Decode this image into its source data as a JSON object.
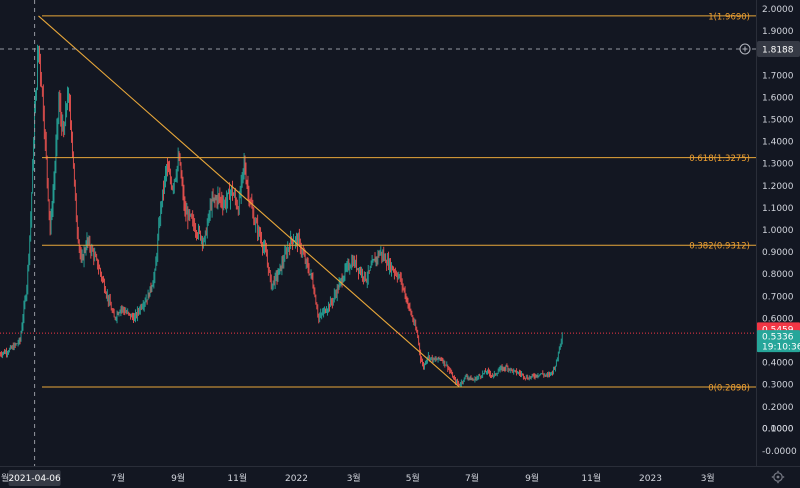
{
  "chart_data": {
    "type": "candlestick",
    "y_axis": {
      "range": [
        -0.05,
        2.0
      ],
      "ticks": [
        "2.0000",
        "1.9000",
        "1.8000",
        "1.7000",
        "1.6000",
        "1.5000",
        "1.4000",
        "1.3000",
        "1.2000",
        "1.1000",
        "1.0000",
        "0.9000",
        "0.8000",
        "0.7000",
        "0.6000",
        "0.5000",
        "0.4000",
        "0.3000",
        "0.2000",
        "0.1000",
        "0.0000",
        "-0.0000"
      ]
    },
    "x_axis": {
      "ticks": [
        {
          "label": "월",
          "date": "2021-03-01"
        },
        {
          "label": "7월",
          "date": "2021-07-01"
        },
        {
          "label": "9월",
          "date": "2021-09-01"
        },
        {
          "label": "11월",
          "date": "2021-11-01"
        },
        {
          "label": "2022",
          "date": "2022-01-01"
        },
        {
          "label": "3월",
          "date": "2022-03-01"
        },
        {
          "label": "5월",
          "date": "2022-05-01"
        },
        {
          "label": "7월",
          "date": "2022-07-01"
        },
        {
          "label": "9월",
          "date": "2022-09-01"
        },
        {
          "label": "11월",
          "date": "2022-11-01"
        },
        {
          "label": "2023",
          "date": "2023-01-01"
        },
        {
          "label": "3월",
          "date": "2023-03-01"
        }
      ]
    },
    "crosshair": {
      "date_label": "2021-04-06",
      "date": "2021-04-06",
      "price_label": "1.8188",
      "price": 1.8188
    },
    "fibonacci": [
      {
        "label": "1(1.9690)",
        "value": 1.969
      },
      {
        "label": "0.618(1.3275)",
        "value": 1.3275
      },
      {
        "label": "0.382(0.9312)",
        "value": 0.9312
      },
      {
        "label": "0(0.2898)",
        "value": 0.2898
      }
    ],
    "trendline": [
      {
        "date": "2021-04-10",
        "price": 1.969
      },
      {
        "date": "2022-06-18",
        "price": 0.2898
      }
    ],
    "price_tags": [
      {
        "label": "0.5459",
        "value": 0.5459,
        "color": "#f23645"
      },
      {
        "label": "0.5336",
        "value": 0.5336,
        "color": "#26a69a"
      }
    ],
    "countdown": "19:10:36",
    "price_path": [
      [
        "2021-03-01",
        0.44
      ],
      [
        "2021-03-08",
        0.45
      ],
      [
        "2021-03-15",
        0.47
      ],
      [
        "2021-03-22",
        0.5
      ],
      [
        "2021-03-29",
        0.75
      ],
      [
        "2021-04-02",
        1.05
      ],
      [
        "2021-04-06",
        1.52
      ],
      [
        "2021-04-10",
        1.83
      ],
      [
        "2021-04-14",
        1.62
      ],
      [
        "2021-04-18",
        1.32
      ],
      [
        "2021-04-22",
        1.0
      ],
      [
        "2021-04-26",
        1.22
      ],
      [
        "2021-05-01",
        1.58
      ],
      [
        "2021-05-06",
        1.42
      ],
      [
        "2021-05-10",
        1.62
      ],
      [
        "2021-05-14",
        1.45
      ],
      [
        "2021-05-19",
        1.05
      ],
      [
        "2021-05-24",
        0.85
      ],
      [
        "2021-05-30",
        0.95
      ],
      [
        "2021-06-05",
        0.9
      ],
      [
        "2021-06-12",
        0.82
      ],
      [
        "2021-06-20",
        0.7
      ],
      [
        "2021-06-27",
        0.6
      ],
      [
        "2021-07-04",
        0.65
      ],
      [
        "2021-07-11",
        0.62
      ],
      [
        "2021-07-18",
        0.6
      ],
      [
        "2021-07-25",
        0.66
      ],
      [
        "2021-08-01",
        0.7
      ],
      [
        "2021-08-08",
        0.8
      ],
      [
        "2021-08-14",
        1.1
      ],
      [
        "2021-08-20",
        1.28
      ],
      [
        "2021-08-26",
        1.2
      ],
      [
        "2021-09-02",
        1.32
      ],
      [
        "2021-09-08",
        1.08
      ],
      [
        "2021-09-14",
        1.05
      ],
      [
        "2021-09-20",
        1.0
      ],
      [
        "2021-09-28",
        0.95
      ],
      [
        "2021-10-05",
        1.12
      ],
      [
        "2021-10-12",
        1.15
      ],
      [
        "2021-10-19",
        1.12
      ],
      [
        "2021-10-26",
        1.18
      ],
      [
        "2021-11-02",
        1.1
      ],
      [
        "2021-11-08",
        1.3
      ],
      [
        "2021-11-12",
        1.18
      ],
      [
        "2021-11-18",
        1.05
      ],
      [
        "2021-11-24",
        0.98
      ],
      [
        "2021-12-01",
        0.88
      ],
      [
        "2021-12-06",
        0.75
      ],
      [
        "2021-12-13",
        0.8
      ],
      [
        "2021-12-20",
        0.88
      ],
      [
        "2021-12-27",
        0.96
      ],
      [
        "2022-01-03",
        0.95
      ],
      [
        "2022-01-10",
        0.86
      ],
      [
        "2022-01-17",
        0.78
      ],
      [
        "2022-01-24",
        0.6
      ],
      [
        "2022-01-31",
        0.64
      ],
      [
        "2022-02-07",
        0.68
      ],
      [
        "2022-02-14",
        0.75
      ],
      [
        "2022-02-21",
        0.82
      ],
      [
        "2022-02-28",
        0.86
      ],
      [
        "2022-03-07",
        0.82
      ],
      [
        "2022-03-14",
        0.78
      ],
      [
        "2022-03-21",
        0.85
      ],
      [
        "2022-03-28",
        0.9
      ],
      [
        "2022-04-04",
        0.86
      ],
      [
        "2022-04-11",
        0.82
      ],
      [
        "2022-04-18",
        0.78
      ],
      [
        "2022-04-25",
        0.68
      ],
      [
        "2022-05-02",
        0.58
      ],
      [
        "2022-05-06",
        0.52
      ],
      [
        "2022-05-09",
        0.42
      ],
      [
        "2022-05-12",
        0.38
      ],
      [
        "2022-05-16",
        0.43
      ],
      [
        "2022-05-23",
        0.41
      ],
      [
        "2022-05-30",
        0.42
      ],
      [
        "2022-06-06",
        0.38
      ],
      [
        "2022-06-13",
        0.32
      ],
      [
        "2022-06-18",
        0.3
      ],
      [
        "2022-06-25",
        0.34
      ],
      [
        "2022-07-02",
        0.32
      ],
      [
        "2022-07-09",
        0.34
      ],
      [
        "2022-07-16",
        0.36
      ],
      [
        "2022-07-23",
        0.34
      ],
      [
        "2022-07-30",
        0.37
      ],
      [
        "2022-08-06",
        0.38
      ],
      [
        "2022-08-13",
        0.36
      ],
      [
        "2022-08-20",
        0.35
      ],
      [
        "2022-08-27",
        0.33
      ],
      [
        "2022-09-03",
        0.34
      ],
      [
        "2022-09-10",
        0.35
      ],
      [
        "2022-09-17",
        0.34
      ],
      [
        "2022-09-22",
        0.36
      ],
      [
        "2022-09-26",
        0.4
      ],
      [
        "2022-09-29",
        0.47
      ],
      [
        "2022-10-02",
        0.5336
      ]
    ]
  }
}
